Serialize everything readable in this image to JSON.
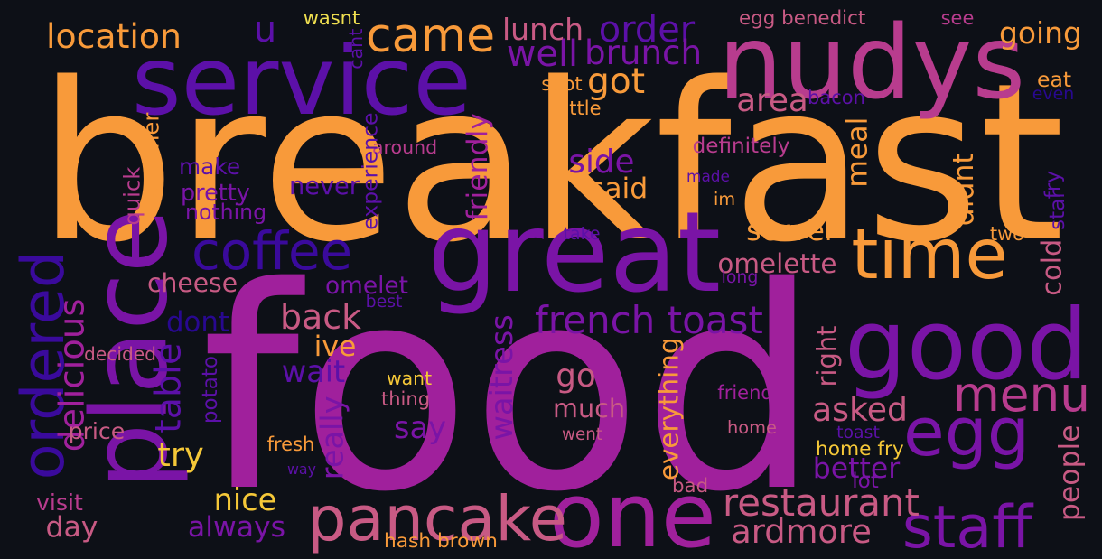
{
  "palette": {
    "background": "#0d1017",
    "orange": "#f89a3a",
    "yellow": "#f5c838",
    "lightyellow": "#f0e050",
    "salmon": "#d4686c",
    "rose": "#c85a84",
    "pink": "#b83c8e",
    "magenta": "#a0209c",
    "purple": "#7a14a6",
    "violet": "#5c10a8",
    "indigo": "#3a0a9c",
    "navy": "#280890"
  },
  "words": [
    {
      "text": "breakfast",
      "color": "orange"
    },
    {
      "text": "food",
      "color": "magenta"
    },
    {
      "text": "service",
      "color": "violet"
    },
    {
      "text": "nudys",
      "color": "pink"
    },
    {
      "text": "great",
      "color": "purple"
    },
    {
      "text": "place",
      "color": "purple"
    },
    {
      "text": "good",
      "color": "purple"
    },
    {
      "text": "one",
      "color": "magenta"
    },
    {
      "text": "egg",
      "color": "purple"
    },
    {
      "text": "time",
      "color": "orange"
    },
    {
      "text": "pancake",
      "color": "rose"
    },
    {
      "text": "staff",
      "color": "purple"
    },
    {
      "text": "came",
      "color": "orange"
    },
    {
      "text": "menu",
      "color": "pink"
    },
    {
      "text": "coffee",
      "color": "indigo"
    },
    {
      "text": "ordered",
      "color": "indigo"
    },
    {
      "text": "u",
      "color": "violet"
    },
    {
      "text": "french toast",
      "color": "purple"
    },
    {
      "text": "restaurant",
      "color": "rose"
    },
    {
      "text": "location",
      "color": "orange"
    },
    {
      "text": "delicious",
      "color": "magenta"
    },
    {
      "text": "waitress",
      "color": "purple"
    },
    {
      "text": "order",
      "color": "violet"
    },
    {
      "text": "brunch",
      "color": "purple"
    },
    {
      "text": "well",
      "color": "purple"
    },
    {
      "text": "lunch",
      "color": "rose"
    },
    {
      "text": "going",
      "color": "orange"
    },
    {
      "text": "got",
      "color": "orange"
    },
    {
      "text": "area",
      "color": "rose"
    },
    {
      "text": "eat",
      "color": "orange"
    },
    {
      "text": "side",
      "color": "purple"
    },
    {
      "text": "said",
      "color": "orange"
    },
    {
      "text": "friendly",
      "color": "magenta"
    },
    {
      "text": "back",
      "color": "rose"
    },
    {
      "text": "omelet",
      "color": "purple"
    },
    {
      "text": "omelette",
      "color": "rose"
    },
    {
      "text": "server",
      "color": "orange"
    },
    {
      "text": "didnt",
      "color": "orange"
    },
    {
      "text": "meal",
      "color": "orange"
    },
    {
      "text": "cold",
      "color": "rose"
    },
    {
      "text": "make",
      "color": "violet"
    },
    {
      "text": "never",
      "color": "violet"
    },
    {
      "text": "pretty",
      "color": "purple"
    },
    {
      "text": "nothing",
      "color": "purple"
    },
    {
      "text": "cheese",
      "color": "rose"
    },
    {
      "text": "dont",
      "color": "navy"
    },
    {
      "text": "ive",
      "color": "orange"
    },
    {
      "text": "wait",
      "color": "violet"
    },
    {
      "text": "go",
      "color": "rose"
    },
    {
      "text": "much",
      "color": "rose"
    },
    {
      "text": "say",
      "color": "purple"
    },
    {
      "text": "really",
      "color": "purple"
    },
    {
      "text": "asked",
      "color": "rose"
    },
    {
      "text": "everything",
      "color": "orange"
    },
    {
      "text": "right",
      "color": "rose"
    },
    {
      "text": "people",
      "color": "rose"
    },
    {
      "text": "table",
      "color": "violet"
    },
    {
      "text": "try",
      "color": "yellow"
    },
    {
      "text": "nice",
      "color": "yellow"
    },
    {
      "text": "always",
      "color": "purple"
    },
    {
      "text": "day",
      "color": "rose"
    },
    {
      "text": "visit",
      "color": "pink"
    },
    {
      "text": "price",
      "color": "rose"
    },
    {
      "text": "ardmore",
      "color": "rose"
    },
    {
      "text": "better",
      "color": "purple"
    },
    {
      "text": "hash brown",
      "color": "orange"
    },
    {
      "text": "bad",
      "color": "rose"
    },
    {
      "text": "lot",
      "color": "purple"
    },
    {
      "text": "home fry",
      "color": "yellow"
    },
    {
      "text": "home",
      "color": "rose"
    },
    {
      "text": "toast",
      "color": "violet"
    },
    {
      "text": "friend",
      "color": "magenta"
    },
    {
      "text": "went",
      "color": "rose"
    },
    {
      "text": "fresh",
      "color": "orange"
    },
    {
      "text": "way",
      "color": "violet"
    },
    {
      "text": "want",
      "color": "yellow"
    },
    {
      "text": "thing",
      "color": "rose"
    },
    {
      "text": "wasnt",
      "color": "lightyellow"
    },
    {
      "text": "cant",
      "color": "violet"
    },
    {
      "text": "egg benedict",
      "color": "rose"
    },
    {
      "text": "see",
      "color": "pink"
    },
    {
      "text": "spot",
      "color": "orange"
    },
    {
      "text": "little",
      "color": "orange"
    },
    {
      "text": "bacon",
      "color": "violet"
    },
    {
      "text": "even",
      "color": "navy"
    },
    {
      "text": "around",
      "color": "pink"
    },
    {
      "text": "definitely",
      "color": "pink"
    },
    {
      "text": "made",
      "color": "violet"
    },
    {
      "text": "im",
      "color": "orange"
    },
    {
      "text": "experience",
      "color": "violet"
    },
    {
      "text": "another",
      "color": "orange"
    },
    {
      "text": "quick",
      "color": "pink"
    },
    {
      "text": "fry",
      "color": "violet"
    },
    {
      "text": "star",
      "color": "violet"
    },
    {
      "text": "two",
      "color": "orange"
    },
    {
      "text": "take",
      "color": "violet"
    },
    {
      "text": "long",
      "color": "purple"
    },
    {
      "text": "best",
      "color": "violet"
    },
    {
      "text": "decided",
      "color": "rose"
    },
    {
      "text": "potato",
      "color": "violet"
    }
  ]
}
